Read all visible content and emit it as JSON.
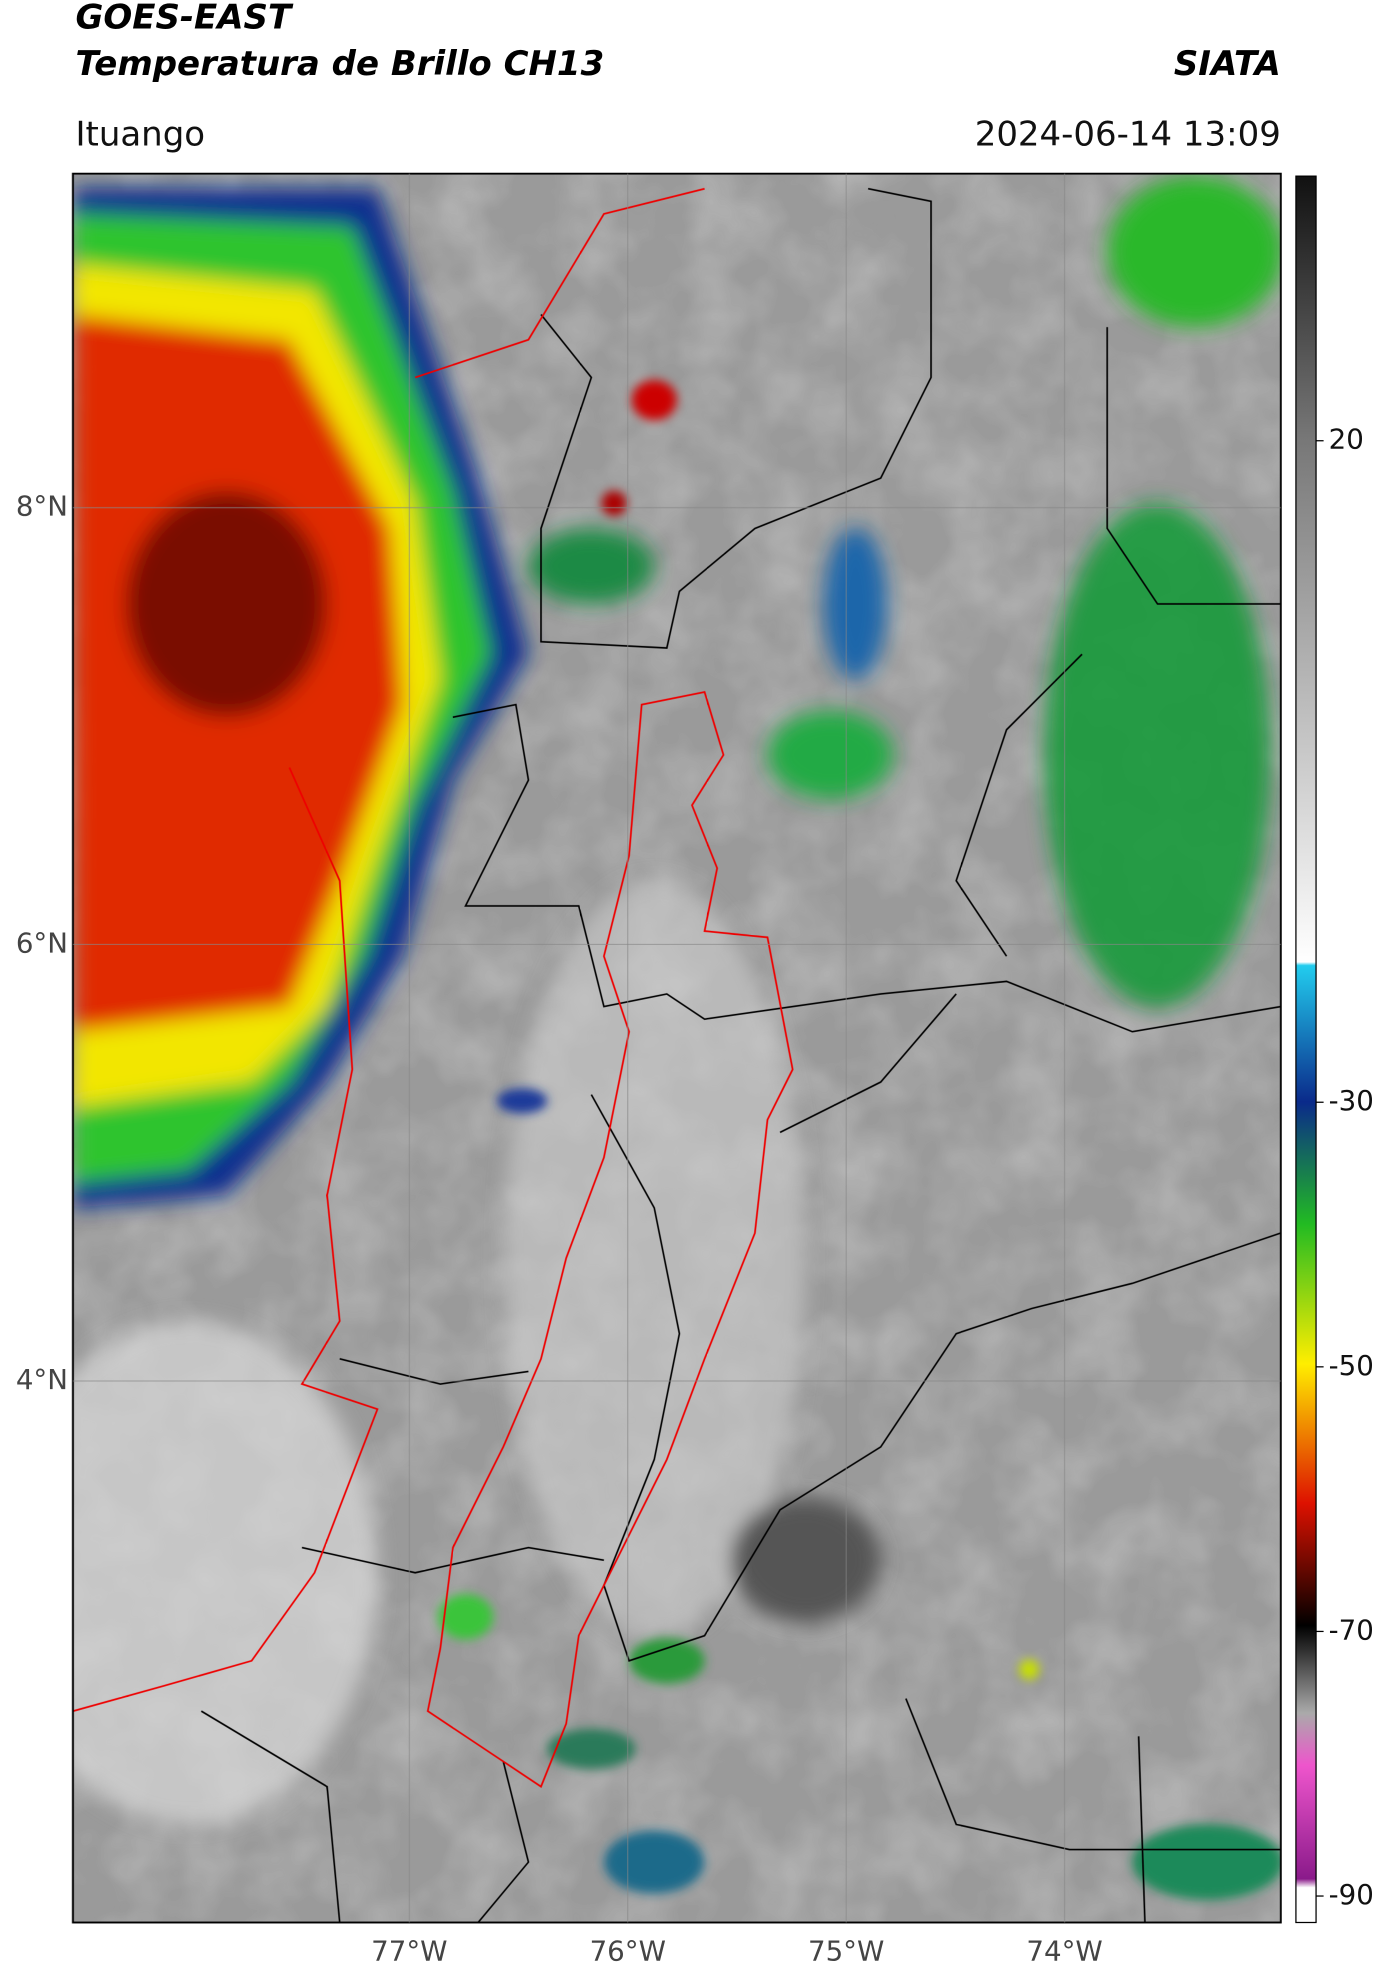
{
  "header": {
    "title": "GOES-EAST",
    "subtitle": "Temperatura de Brillo CH13",
    "brand": "SIATA",
    "location": "Ituango",
    "datetime": "2024-06-14 13:09"
  },
  "map": {
    "lat_range": [
      1.52,
      9.53
    ],
    "lon_range": [
      -78.54,
      -73.01
    ],
    "lat_ticks": [
      {
        "value": 8,
        "label": "8°N"
      },
      {
        "value": 6,
        "label": "6°N"
      },
      {
        "value": 4,
        "label": "4°N"
      }
    ],
    "lon_ticks": [
      {
        "value": -77,
        "label": "77°W"
      },
      {
        "value": -76,
        "label": "76°W"
      },
      {
        "value": -75,
        "label": "75°W"
      },
      {
        "value": -74,
        "label": "74°W"
      }
    ]
  },
  "colorbar": {
    "range": [
      -92,
      40
    ],
    "ticks": [
      20,
      -30,
      -50,
      -70,
      -90
    ]
  }
}
